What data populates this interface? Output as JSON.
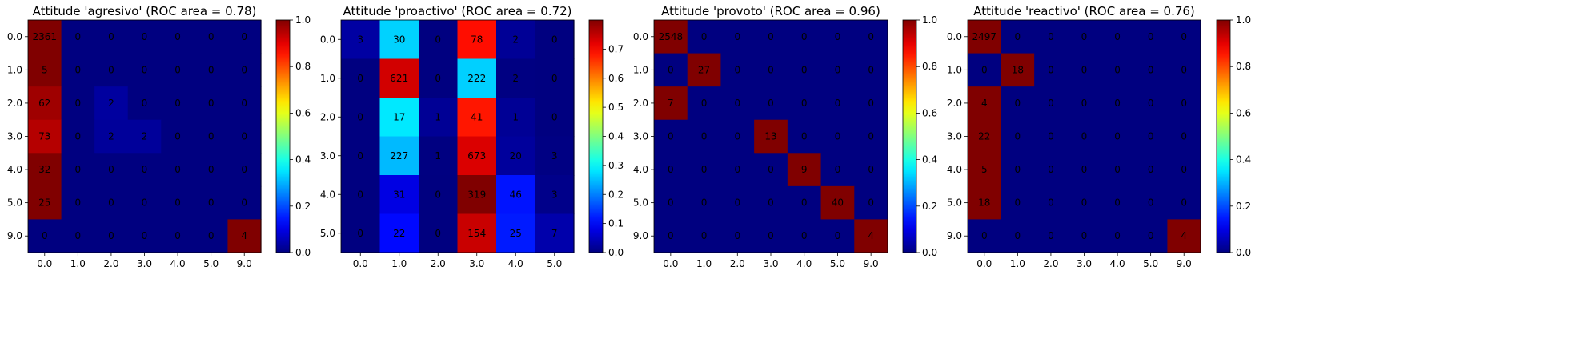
{
  "chart_data": [
    {
      "type": "heatmap",
      "title": "Attitude 'agresivo' (ROC area = 0.78)",
      "xlabel": "",
      "ylabel": "",
      "x_categories": [
        "0.0",
        "1.0",
        "2.0",
        "3.0",
        "4.0",
        "5.0",
        "9.0"
      ],
      "y_categories": [
        "0.0",
        "1.0",
        "2.0",
        "3.0",
        "4.0",
        "5.0",
        "9.0"
      ],
      "values": [
        [
          2361,
          0,
          0,
          0,
          0,
          0,
          0
        ],
        [
          5,
          0,
          0,
          0,
          0,
          0,
          0
        ],
        [
          62,
          0,
          2,
          0,
          0,
          0,
          0
        ],
        [
          73,
          0,
          2,
          2,
          0,
          0,
          0
        ],
        [
          32,
          0,
          0,
          0,
          0,
          0,
          0
        ],
        [
          25,
          0,
          0,
          0,
          0,
          0,
          0
        ],
        [
          0,
          0,
          0,
          0,
          0,
          0,
          4
        ]
      ],
      "normalized": [
        [
          1,
          0,
          0,
          0,
          0,
          0,
          0
        ],
        [
          1,
          0,
          0,
          0,
          0,
          0,
          0
        ],
        [
          0.969,
          0,
          0.031,
          0,
          0,
          0,
          0
        ],
        [
          0.948,
          0,
          0.026,
          0.026,
          0,
          0,
          0
        ],
        [
          1,
          0,
          0,
          0,
          0,
          0,
          0
        ],
        [
          1,
          0,
          0,
          0,
          0,
          0,
          0
        ],
        [
          0,
          0,
          0,
          0,
          0,
          0,
          1
        ]
      ],
      "colorbar": {
        "range": [
          0,
          1.0
        ],
        "ticks": [
          "0.0",
          "0.2",
          "0.4",
          "0.6",
          "0.8",
          "1.0"
        ],
        "tick_values": [
          0,
          0.2,
          0.4,
          0.6,
          0.8,
          1.0
        ]
      },
      "colormap": "jet"
    },
    {
      "type": "heatmap",
      "title": "Attitude 'proactivo' (ROC area = 0.72)",
      "xlabel": "",
      "ylabel": "",
      "x_categories": [
        "0.0",
        "1.0",
        "2.0",
        "3.0",
        "4.0",
        "5.0"
      ],
      "y_categories": [
        "0.0",
        "1.0",
        "2.0",
        "3.0",
        "4.0",
        "5.0"
      ],
      "values": [
        [
          3,
          30,
          0,
          78,
          2,
          0
        ],
        [
          0,
          621,
          0,
          222,
          2,
          0
        ],
        [
          0,
          17,
          1,
          41,
          1,
          0
        ],
        [
          0,
          227,
          1,
          673,
          20,
          3
        ],
        [
          0,
          31,
          0,
          319,
          46,
          3
        ],
        [
          0,
          22,
          0,
          154,
          25,
          7
        ]
      ],
      "normalized": [
        [
          0.027,
          0.265,
          0,
          0.69,
          0.018,
          0
        ],
        [
          0,
          0.735,
          0,
          0.263,
          0.002,
          0
        ],
        [
          0,
          0.283,
          0.017,
          0.683,
          0.017,
          0
        ],
        [
          0,
          0.246,
          0.001,
          0.728,
          0.022,
          0.003
        ],
        [
          0,
          0.078,
          0,
          0.8,
          0.115,
          0.008
        ],
        [
          0,
          0.106,
          0,
          0.742,
          0.12,
          0.034
        ]
      ],
      "colorbar": {
        "range": [
          0,
          0.8
        ],
        "ticks": [
          "0.0",
          "0.1",
          "0.2",
          "0.3",
          "0.4",
          "0.5",
          "0.6",
          "0.7"
        ],
        "tick_values": [
          0,
          0.1,
          0.2,
          0.3,
          0.4,
          0.5,
          0.6,
          0.7
        ]
      },
      "colormap": "jet"
    },
    {
      "type": "heatmap",
      "title": "Attitude 'provoto' (ROC area = 0.96)",
      "xlabel": "",
      "ylabel": "",
      "x_categories": [
        "0.0",
        "1.0",
        "2.0",
        "3.0",
        "4.0",
        "5.0",
        "9.0"
      ],
      "y_categories": [
        "0.0",
        "1.0",
        "2.0",
        "3.0",
        "4.0",
        "5.0",
        "9.0"
      ],
      "values": [
        [
          2548,
          0,
          0,
          0,
          0,
          0,
          0
        ],
        [
          0,
          27,
          0,
          0,
          0,
          0,
          0
        ],
        [
          7,
          0,
          0,
          0,
          0,
          0,
          0
        ],
        [
          0,
          0,
          0,
          13,
          0,
          0,
          0
        ],
        [
          0,
          0,
          0,
          0,
          9,
          0,
          0
        ],
        [
          0,
          0,
          0,
          0,
          0,
          40,
          0
        ],
        [
          0,
          0,
          0,
          0,
          0,
          0,
          4
        ]
      ],
      "normalized": [
        [
          1,
          0,
          0,
          0,
          0,
          0,
          0
        ],
        [
          0,
          1,
          0,
          0,
          0,
          0,
          0
        ],
        [
          1,
          0,
          0,
          0,
          0,
          0,
          0
        ],
        [
          0,
          0,
          0,
          1,
          0,
          0,
          0
        ],
        [
          0,
          0,
          0,
          0,
          1,
          0,
          0
        ],
        [
          0,
          0,
          0,
          0,
          0,
          1,
          0
        ],
        [
          0,
          0,
          0,
          0,
          0,
          0,
          1
        ]
      ],
      "colorbar": {
        "range": [
          0,
          1.0
        ],
        "ticks": [
          "0.0",
          "0.2",
          "0.4",
          "0.6",
          "0.8",
          "1.0"
        ],
        "tick_values": [
          0,
          0.2,
          0.4,
          0.6,
          0.8,
          1.0
        ]
      },
      "colormap": "jet"
    },
    {
      "type": "heatmap",
      "title": "Attitude 'reactivo' (ROC area = 0.76)",
      "xlabel": "",
      "ylabel": "",
      "x_categories": [
        "0.0",
        "1.0",
        "2.0",
        "3.0",
        "4.0",
        "5.0",
        "9.0"
      ],
      "y_categories": [
        "0.0",
        "1.0",
        "2.0",
        "3.0",
        "4.0",
        "5.0",
        "9.0"
      ],
      "values": [
        [
          2497,
          0,
          0,
          0,
          0,
          0,
          0
        ],
        [
          0,
          18,
          0,
          0,
          0,
          0,
          0
        ],
        [
          4,
          0,
          0,
          0,
          0,
          0,
          0
        ],
        [
          22,
          0,
          0,
          0,
          0,
          0,
          0
        ],
        [
          5,
          0,
          0,
          0,
          0,
          0,
          0
        ],
        [
          18,
          0,
          0,
          0,
          0,
          0,
          0
        ],
        [
          0,
          0,
          0,
          0,
          0,
          0,
          4
        ]
      ],
      "normalized": [
        [
          1,
          0,
          0,
          0,
          0,
          0,
          0
        ],
        [
          0,
          1,
          0,
          0,
          0,
          0,
          0
        ],
        [
          1,
          0,
          0,
          0,
          0,
          0,
          0
        ],
        [
          1,
          0,
          0,
          0,
          0,
          0,
          0
        ],
        [
          1,
          0,
          0,
          0,
          0,
          0,
          0
        ],
        [
          1,
          0,
          0,
          0,
          0,
          0,
          0
        ],
        [
          0,
          0,
          0,
          0,
          0,
          0,
          1
        ]
      ],
      "colorbar": {
        "range": [
          0,
          1.0
        ],
        "ticks": [
          "0.0",
          "0.2",
          "0.4",
          "0.6",
          "0.8",
          "1.0"
        ],
        "tick_values": [
          0,
          0.2,
          0.4,
          0.6,
          0.8,
          1.0
        ]
      },
      "colormap": "jet"
    }
  ]
}
